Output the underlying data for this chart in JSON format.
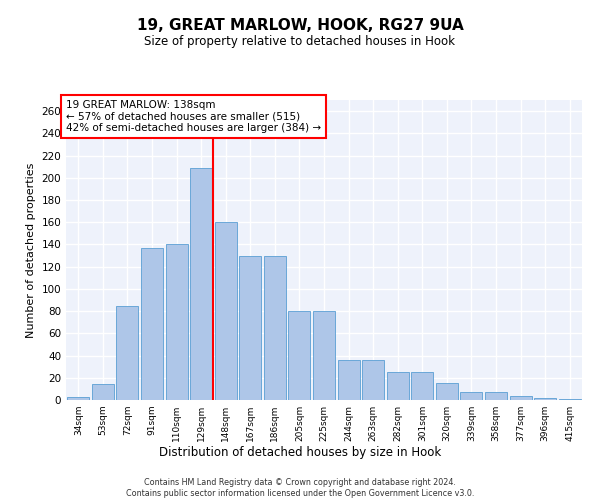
{
  "title": "19, GREAT MARLOW, HOOK, RG27 9UA",
  "subtitle": "Size of property relative to detached houses in Hook",
  "xlabel": "Distribution of detached houses by size in Hook",
  "ylabel": "Number of detached properties",
  "footer_line1": "Contains HM Land Registry data © Crown copyright and database right 2024.",
  "footer_line2": "Contains public sector information licensed under the Open Government Licence v3.0.",
  "annotation_title": "19 GREAT MARLOW: 138sqm",
  "annotation_line1": "← 57% of detached houses are smaller (515)",
  "annotation_line2": "42% of semi-detached houses are larger (384) →",
  "bar_labels": [
    "34sqm",
    "53sqm",
    "72sqm",
    "91sqm",
    "110sqm",
    "129sqm",
    "148sqm",
    "167sqm",
    "186sqm",
    "205sqm",
    "225sqm",
    "244sqm",
    "263sqm",
    "282sqm",
    "301sqm",
    "320sqm",
    "339sqm",
    "358sqm",
    "377sqm",
    "396sqm",
    "415sqm"
  ],
  "bar_heights": [
    3,
    14,
    85,
    137,
    140,
    209,
    160,
    130,
    130,
    80,
    80,
    36,
    36,
    25,
    25,
    15,
    7,
    7,
    4,
    2,
    1
  ],
  "bar_color": "#aec6e8",
  "bar_edge_color": "#5a9fd4",
  "vline_x": 5.5,
  "vline_color": "red",
  "ylim": [
    0,
    270
  ],
  "yticks": [
    0,
    20,
    40,
    60,
    80,
    100,
    120,
    140,
    160,
    180,
    200,
    220,
    240,
    260
  ],
  "background_color": "#eef2fb",
  "grid_color": "#ffffff"
}
